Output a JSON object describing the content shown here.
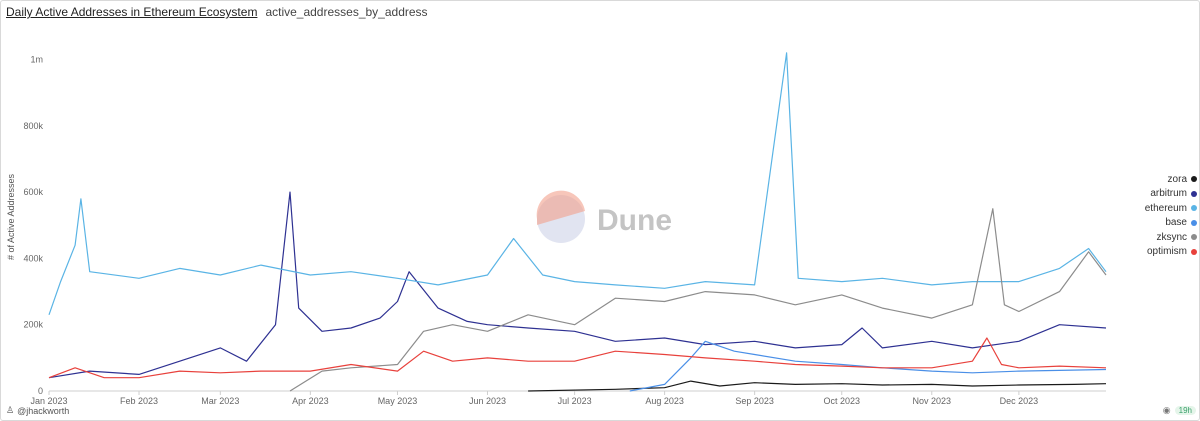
{
  "header": {
    "title": "Daily Active Addresses in Ethereum Ecosystem",
    "subtitle": "active_addresses_by_address"
  },
  "footer": {
    "author": "@jhackworth",
    "age": "19h"
  },
  "watermark": {
    "text": "Dune"
  },
  "icons": {
    "author": "user-icon",
    "camera": "camera-icon"
  },
  "chart_data": {
    "type": "line",
    "title": "Daily Active Addresses in Ethereum Ecosystem",
    "xlabel": "",
    "ylabel": "# of Active Addresses",
    "x_range": [
      "2023-01-01",
      "2023-12-31"
    ],
    "ylim": [
      0,
      1050000
    ],
    "y_ticks": [
      {
        "value": 0,
        "label": "0"
      },
      {
        "value": 200000,
        "label": "200k"
      },
      {
        "value": 400000,
        "label": "400k"
      },
      {
        "value": 600000,
        "label": "600k"
      },
      {
        "value": 800000,
        "label": "800k"
      },
      {
        "value": 1000000,
        "label": "1m"
      }
    ],
    "x_ticks": [
      {
        "date": "2023-01-01",
        "label": "Jan 2023"
      },
      {
        "date": "2023-02-01",
        "label": "Feb 2023"
      },
      {
        "date": "2023-03-01",
        "label": "Mar 2023"
      },
      {
        "date": "2023-04-01",
        "label": "Apr 2023"
      },
      {
        "date": "2023-05-01",
        "label": "May 2023"
      },
      {
        "date": "2023-06-01",
        "label": "Jun 2023"
      },
      {
        "date": "2023-07-01",
        "label": "Jul 2023"
      },
      {
        "date": "2023-08-01",
        "label": "Aug 2023"
      },
      {
        "date": "2023-09-01",
        "label": "Sep 2023"
      },
      {
        "date": "2023-10-01",
        "label": "Oct 2023"
      },
      {
        "date": "2023-11-01",
        "label": "Nov 2023"
      },
      {
        "date": "2023-12-01",
        "label": "Dec 2023"
      }
    ],
    "grid": false,
    "legend_position": "right",
    "series": [
      {
        "name": "zora",
        "color": "#1a1a1a",
        "points": [
          [
            "2023-06-15",
            0
          ],
          [
            "2023-07-15",
            5000
          ],
          [
            "2023-08-01",
            10000
          ],
          [
            "2023-08-10",
            30000
          ],
          [
            "2023-08-20",
            15000
          ],
          [
            "2023-09-01",
            25000
          ],
          [
            "2023-09-15",
            20000
          ],
          [
            "2023-10-01",
            22000
          ],
          [
            "2023-10-15",
            18000
          ],
          [
            "2023-11-01",
            20000
          ],
          [
            "2023-11-15",
            15000
          ],
          [
            "2023-12-01",
            18000
          ],
          [
            "2023-12-20",
            20000
          ],
          [
            "2023-12-31",
            22000
          ]
        ]
      },
      {
        "name": "arbitrum",
        "color": "#2e3192",
        "points": [
          [
            "2023-01-01",
            40000
          ],
          [
            "2023-01-15",
            60000
          ],
          [
            "2023-02-01",
            50000
          ],
          [
            "2023-02-15",
            90000
          ],
          [
            "2023-03-01",
            130000
          ],
          [
            "2023-03-10",
            90000
          ],
          [
            "2023-03-20",
            200000
          ],
          [
            "2023-03-25",
            600000
          ],
          [
            "2023-03-28",
            250000
          ],
          [
            "2023-04-05",
            180000
          ],
          [
            "2023-04-15",
            190000
          ],
          [
            "2023-04-25",
            220000
          ],
          [
            "2023-05-01",
            270000
          ],
          [
            "2023-05-05",
            360000
          ],
          [
            "2023-05-15",
            250000
          ],
          [
            "2023-05-25",
            210000
          ],
          [
            "2023-06-01",
            200000
          ],
          [
            "2023-06-15",
            190000
          ],
          [
            "2023-07-01",
            180000
          ],
          [
            "2023-07-15",
            150000
          ],
          [
            "2023-08-01",
            160000
          ],
          [
            "2023-08-15",
            140000
          ],
          [
            "2023-09-01",
            150000
          ],
          [
            "2023-09-15",
            130000
          ],
          [
            "2023-10-01",
            140000
          ],
          [
            "2023-10-08",
            190000
          ],
          [
            "2023-10-15",
            130000
          ],
          [
            "2023-11-01",
            150000
          ],
          [
            "2023-11-15",
            130000
          ],
          [
            "2023-12-01",
            150000
          ],
          [
            "2023-12-15",
            200000
          ],
          [
            "2023-12-31",
            190000
          ]
        ]
      },
      {
        "name": "ethereum",
        "color": "#5ab4e5",
        "points": [
          [
            "2023-01-01",
            230000
          ],
          [
            "2023-01-05",
            330000
          ],
          [
            "2023-01-10",
            440000
          ],
          [
            "2023-01-12",
            580000
          ],
          [
            "2023-01-15",
            360000
          ],
          [
            "2023-02-01",
            340000
          ],
          [
            "2023-02-15",
            370000
          ],
          [
            "2023-03-01",
            350000
          ],
          [
            "2023-03-15",
            380000
          ],
          [
            "2023-04-01",
            350000
          ],
          [
            "2023-04-15",
            360000
          ],
          [
            "2023-05-01",
            340000
          ],
          [
            "2023-05-15",
            320000
          ],
          [
            "2023-06-01",
            350000
          ],
          [
            "2023-06-10",
            460000
          ],
          [
            "2023-06-20",
            350000
          ],
          [
            "2023-07-01",
            330000
          ],
          [
            "2023-07-15",
            320000
          ],
          [
            "2023-08-01",
            310000
          ],
          [
            "2023-08-15",
            330000
          ],
          [
            "2023-09-01",
            320000
          ],
          [
            "2023-09-12",
            1020000
          ],
          [
            "2023-09-16",
            340000
          ],
          [
            "2023-10-01",
            330000
          ],
          [
            "2023-10-15",
            340000
          ],
          [
            "2023-11-01",
            320000
          ],
          [
            "2023-11-15",
            330000
          ],
          [
            "2023-12-01",
            330000
          ],
          [
            "2023-12-15",
            370000
          ],
          [
            "2023-12-25",
            430000
          ],
          [
            "2023-12-31",
            360000
          ]
        ]
      },
      {
        "name": "base",
        "color": "#4a8fe7",
        "points": [
          [
            "2023-07-20",
            0
          ],
          [
            "2023-08-01",
            20000
          ],
          [
            "2023-08-10",
            100000
          ],
          [
            "2023-08-15",
            150000
          ],
          [
            "2023-08-25",
            120000
          ],
          [
            "2023-09-01",
            110000
          ],
          [
            "2023-09-15",
            90000
          ],
          [
            "2023-10-01",
            80000
          ],
          [
            "2023-10-15",
            70000
          ],
          [
            "2023-11-01",
            60000
          ],
          [
            "2023-11-15",
            55000
          ],
          [
            "2023-12-01",
            60000
          ],
          [
            "2023-12-31",
            65000
          ]
        ]
      },
      {
        "name": "zksync",
        "color": "#8c8c8c",
        "points": [
          [
            "2023-03-25",
            0
          ],
          [
            "2023-04-05",
            60000
          ],
          [
            "2023-04-15",
            70000
          ],
          [
            "2023-05-01",
            80000
          ],
          [
            "2023-05-10",
            180000
          ],
          [
            "2023-05-20",
            200000
          ],
          [
            "2023-06-01",
            180000
          ],
          [
            "2023-06-15",
            230000
          ],
          [
            "2023-07-01",
            200000
          ],
          [
            "2023-07-15",
            280000
          ],
          [
            "2023-08-01",
            270000
          ],
          [
            "2023-08-15",
            300000
          ],
          [
            "2023-09-01",
            290000
          ],
          [
            "2023-09-15",
            260000
          ],
          [
            "2023-10-01",
            290000
          ],
          [
            "2023-10-15",
            250000
          ],
          [
            "2023-11-01",
            220000
          ],
          [
            "2023-11-15",
            260000
          ],
          [
            "2023-11-22",
            550000
          ],
          [
            "2023-11-26",
            260000
          ],
          [
            "2023-12-01",
            240000
          ],
          [
            "2023-12-15",
            300000
          ],
          [
            "2023-12-25",
            420000
          ],
          [
            "2023-12-31",
            350000
          ]
        ]
      },
      {
        "name": "optimism",
        "color": "#e8413c",
        "points": [
          [
            "2023-01-01",
            40000
          ],
          [
            "2023-01-10",
            70000
          ],
          [
            "2023-01-20",
            40000
          ],
          [
            "2023-02-01",
            40000
          ],
          [
            "2023-02-15",
            60000
          ],
          [
            "2023-03-01",
            55000
          ],
          [
            "2023-03-15",
            60000
          ],
          [
            "2023-04-01",
            60000
          ],
          [
            "2023-04-15",
            80000
          ],
          [
            "2023-05-01",
            60000
          ],
          [
            "2023-05-10",
            120000
          ],
          [
            "2023-05-20",
            90000
          ],
          [
            "2023-06-01",
            100000
          ],
          [
            "2023-06-15",
            90000
          ],
          [
            "2023-07-01",
            90000
          ],
          [
            "2023-07-15",
            120000
          ],
          [
            "2023-08-01",
            110000
          ],
          [
            "2023-08-15",
            100000
          ],
          [
            "2023-09-01",
            90000
          ],
          [
            "2023-09-15",
            80000
          ],
          [
            "2023-10-01",
            75000
          ],
          [
            "2023-10-15",
            70000
          ],
          [
            "2023-11-01",
            70000
          ],
          [
            "2023-11-15",
            90000
          ],
          [
            "2023-11-20",
            160000
          ],
          [
            "2023-11-25",
            80000
          ],
          [
            "2023-12-01",
            70000
          ],
          [
            "2023-12-15",
            75000
          ],
          [
            "2023-12-31",
            70000
          ]
        ]
      }
    ]
  }
}
